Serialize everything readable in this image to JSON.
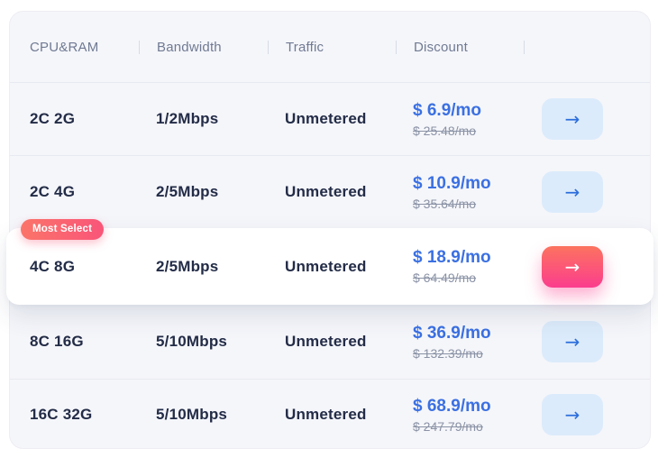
{
  "table": {
    "columns": [
      {
        "label": "CPU&RAM"
      },
      {
        "label": "Bandwidth"
      },
      {
        "label": "Traffic"
      },
      {
        "label": "Discount"
      },
      {
        "label": ""
      }
    ],
    "badge_label": "Most Select",
    "arrow_icon": "→",
    "rows": [
      {
        "cpu_ram": "2C 2G",
        "bandwidth": "1/2Mbps",
        "traffic": "Unmetered",
        "price": "$ 6.9/mo",
        "old_price": "$ 25.48/mo",
        "highlighted": false
      },
      {
        "cpu_ram": "2C 4G",
        "bandwidth": "2/5Mbps",
        "traffic": "Unmetered",
        "price": "$ 10.9/mo",
        "old_price": "$ 35.64/mo",
        "highlighted": false
      },
      {
        "cpu_ram": "4C 8G",
        "bandwidth": "2/5Mbps",
        "traffic": "Unmetered",
        "price": "$ 18.9/mo",
        "old_price": "$ 64.49/mo",
        "highlighted": true
      },
      {
        "cpu_ram": "8C 16G",
        "bandwidth": "5/10Mbps",
        "traffic": "Unmetered",
        "price": "$ 36.9/mo",
        "old_price": "$ 132.39/mo",
        "highlighted": false
      },
      {
        "cpu_ram": "16C 32G",
        "bandwidth": "5/10Mbps",
        "traffic": "Unmetered",
        "price": "$ 68.9/mo",
        "old_price": "$ 247.79/mo",
        "highlighted": false
      }
    ]
  },
  "colors": {
    "panel_background": "#f5f6fa",
    "accent_blue": "#3b70e2",
    "old_price_gray": "#8a92a5",
    "dark_text": "#232c47",
    "header_text": "#707a93",
    "blue_button_bg": "#dcebfb",
    "pink_gradient_top": "#fc735f",
    "pink_gradient_bottom": "#fb3d8d",
    "badge_gradient_left": "#fb7469",
    "badge_gradient_right": "#f95579"
  }
}
